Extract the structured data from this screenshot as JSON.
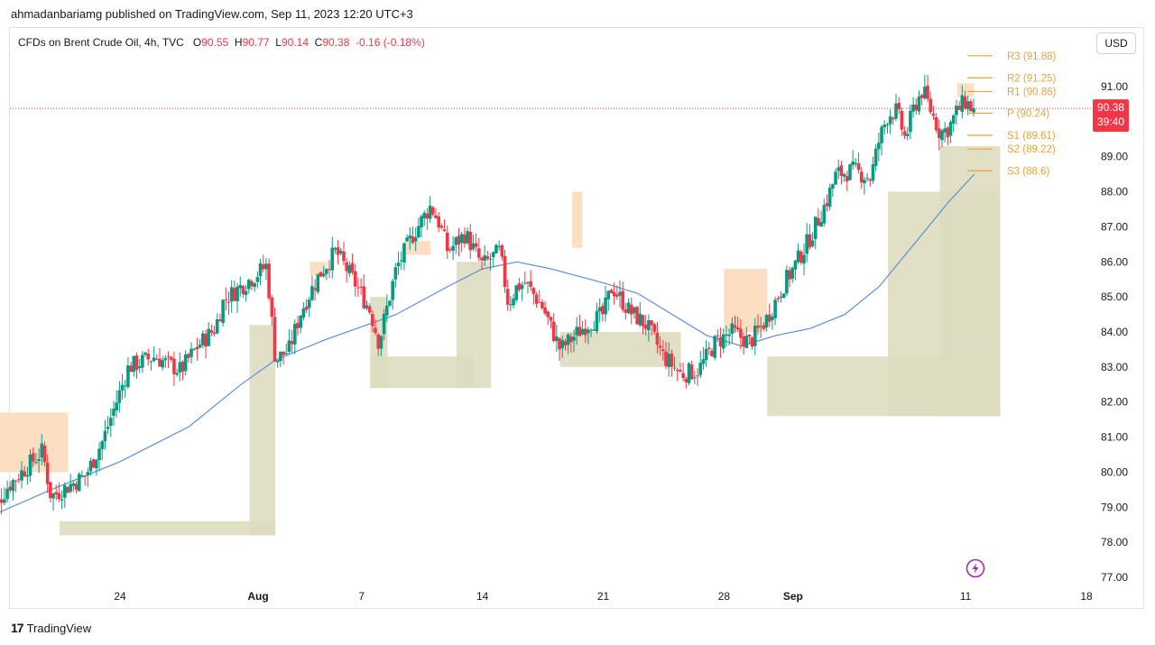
{
  "header": {
    "publisher_line": "ahmadanbariamg published on TradingView.com, Sep 11, 2023 12:20 UTC+3"
  },
  "legend": {
    "symbol": "CFDs on Brent Crude Oil, 4h, TVC",
    "open_label": "O",
    "open_value": "90.55",
    "high_label": "H",
    "high_value": "90.77",
    "low_label": "L",
    "low_value": "90.14",
    "close_label": "C",
    "close_value": "90.38",
    "change": "-0.16 (-0.18%)"
  },
  "currency_button": "USD",
  "price_badge": {
    "price": "90.38",
    "countdown": "39:40",
    "color": "#f23645"
  },
  "footer": {
    "logo": "17",
    "brand": "TradingView"
  },
  "colors": {
    "up": "#089981",
    "down": "#f23645",
    "ma": "#5b8fd6",
    "pivot": "#e8a33d",
    "zone_supply": "#fbd9b8",
    "zone_demand": "#dedcbf",
    "last_price_line": "#f23645"
  },
  "chart_data": {
    "type": "candlestick",
    "timeframe": "4h",
    "y_range": [
      76.8,
      92.3
    ],
    "y_ticks": [
      "77.00",
      "78.00",
      "79.00",
      "80.00",
      "81.00",
      "82.00",
      "83.00",
      "84.00",
      "85.00",
      "86.00",
      "87.00",
      "88.00",
      "89.00",
      "90.00",
      "91.00"
    ],
    "x_ticks": [
      {
        "label": "24",
        "day": 24,
        "bold": false
      },
      {
        "label": "Aug",
        "day": 32,
        "bold": true
      },
      {
        "label": "7",
        "day": 38,
        "bold": false
      },
      {
        "label": "14",
        "day": 45,
        "bold": false
      },
      {
        "label": "21",
        "day": 52,
        "bold": false
      },
      {
        "label": "28",
        "day": 59,
        "bold": false
      },
      {
        "label": "Sep",
        "day": 63,
        "bold": true
      },
      {
        "label": "11",
        "day": 73,
        "bold": false
      },
      {
        "label": "18",
        "day": 80,
        "bold": false
      }
    ],
    "x_domain_days": [
      16.2,
      80.2
    ],
    "last_price": 90.38,
    "pivots": [
      {
        "label": "R3 (91.88)",
        "value": 91.88
      },
      {
        "label": "R2 (91.25)",
        "value": 91.25
      },
      {
        "label": "R1 (90.86)",
        "value": 90.86
      },
      {
        "label": "P (90.24)",
        "value": 90.24
      },
      {
        "label": "S1 (89.61)",
        "value": 89.61
      },
      {
        "label": "S2 (89.22)",
        "value": 89.22
      },
      {
        "label": "S3 (88.6)",
        "value": 88.6
      }
    ],
    "close_waypoints": [
      [
        16.3,
        78.7
      ],
      [
        17.0,
        79.2
      ],
      [
        17.5,
        79.6
      ],
      [
        18.5,
        80.1
      ],
      [
        19.5,
        80.6
      ],
      [
        20.0,
        79.3
      ],
      [
        21.0,
        79.6
      ],
      [
        22.0,
        79.9
      ],
      [
        23.0,
        80.9
      ],
      [
        24.0,
        82.3
      ],
      [
        24.5,
        83.0
      ],
      [
        26.0,
        83.3
      ],
      [
        27.5,
        82.9
      ],
      [
        28.5,
        83.6
      ],
      [
        29.5,
        84.1
      ],
      [
        30.0,
        84.9
      ],
      [
        31.0,
        85.3
      ],
      [
        31.8,
        85.6
      ],
      [
        32.5,
        85.9
      ],
      [
        33.0,
        83.2
      ],
      [
        33.8,
        83.5
      ],
      [
        34.5,
        84.6
      ],
      [
        35.5,
        85.6
      ],
      [
        36.5,
        86.3
      ],
      [
        37.5,
        85.5
      ],
      [
        38.5,
        84.6
      ],
      [
        39.0,
        83.7
      ],
      [
        40.0,
        85.8
      ],
      [
        41.0,
        86.8
      ],
      [
        42.0,
        87.6
      ],
      [
        42.5,
        87.1
      ],
      [
        43.0,
        86.3
      ],
      [
        44.0,
        86.8
      ],
      [
        45.0,
        85.9
      ],
      [
        46.0,
        86.3
      ],
      [
        46.5,
        84.8
      ],
      [
        47.0,
        85.3
      ],
      [
        47.5,
        85.4
      ],
      [
        48.5,
        84.7
      ],
      [
        49.5,
        83.5
      ],
      [
        51.0,
        84.2
      ],
      [
        52.0,
        84.5
      ],
      [
        52.5,
        85.3
      ],
      [
        53.5,
        84.6
      ],
      [
        54.5,
        84.2
      ],
      [
        55.5,
        83.3
      ],
      [
        56.5,
        82.8
      ],
      [
        57.5,
        82.9
      ],
      [
        58.5,
        83.7
      ],
      [
        59.5,
        84.0
      ],
      [
        60.5,
        83.7
      ],
      [
        61.5,
        84.4
      ],
      [
        62.5,
        85.4
      ],
      [
        63.0,
        85.8
      ],
      [
        64.0,
        86.7
      ],
      [
        65.0,
        87.8
      ],
      [
        65.5,
        88.5
      ],
      [
        66.5,
        88.6
      ],
      [
        67.0,
        88.5
      ],
      [
        67.5,
        88.4
      ],
      [
        68.0,
        89.5
      ],
      [
        68.5,
        90.2
      ],
      [
        69.0,
        90.3
      ],
      [
        69.5,
        89.5
      ],
      [
        70.0,
        90.4
      ],
      [
        70.5,
        90.9
      ],
      [
        71.0,
        90.3
      ],
      [
        71.5,
        89.7
      ],
      [
        72.0,
        89.8
      ],
      [
        72.5,
        90.3
      ],
      [
        73.0,
        90.6
      ],
      [
        73.3,
        90.4
      ],
      [
        73.5,
        90.38
      ]
    ],
    "ma_points": [
      [
        16.3,
        78.7
      ],
      [
        20,
        79.5
      ],
      [
        24,
        80.3
      ],
      [
        28,
        81.3
      ],
      [
        31,
        82.5
      ],
      [
        33,
        83.2
      ],
      [
        36,
        83.8
      ],
      [
        40,
        84.5
      ],
      [
        43,
        85.3
      ],
      [
        45,
        85.8
      ],
      [
        47,
        86.0
      ],
      [
        49,
        85.8
      ],
      [
        52,
        85.4
      ],
      [
        54,
        85.1
      ],
      [
        56,
        84.5
      ],
      [
        58,
        83.9
      ],
      [
        60,
        83.6
      ],
      [
        62,
        83.9
      ],
      [
        64,
        84.1
      ],
      [
        66,
        84.5
      ],
      [
        68,
        85.3
      ],
      [
        70,
        86.5
      ],
      [
        72,
        87.7
      ],
      [
        73.5,
        88.5
      ]
    ],
    "zones": [
      {
        "kind": "supply",
        "x0": 16.6,
        "x1": 21.0,
        "top": 81.7,
        "bottom": 80.0
      },
      {
        "kind": "supply",
        "x0": 35.0,
        "x1": 36.0,
        "top": 86.0,
        "bottom": 85.6
      },
      {
        "kind": "supply",
        "x0": 40.5,
        "x1": 42.0,
        "top": 86.6,
        "bottom": 86.2
      },
      {
        "kind": "supply",
        "x0": 50.2,
        "x1": 50.8,
        "top": 88.0,
        "bottom": 86.4
      },
      {
        "kind": "supply",
        "x0": 59.0,
        "x1": 61.5,
        "top": 85.8,
        "bottom": 84.0
      },
      {
        "kind": "supply",
        "x0": 72.5,
        "x1": 73.5,
        "top": 91.1,
        "bottom": 90.7
      },
      {
        "kind": "demand",
        "x0": 20.5,
        "x1": 33.0,
        "top": 78.6,
        "bottom": 78.2
      },
      {
        "kind": "demand",
        "x0": 31.5,
        "x1": 33.0,
        "top": 84.2,
        "bottom": 78.2
      },
      {
        "kind": "demand",
        "x0": 38.5,
        "x1": 44.5,
        "top": 83.3,
        "bottom": 82.4
      },
      {
        "kind": "demand",
        "x0": 38.5,
        "x1": 39.5,
        "top": 85.0,
        "bottom": 82.4
      },
      {
        "kind": "demand",
        "x0": 43.5,
        "x1": 45.5,
        "top": 86.0,
        "bottom": 82.4
      },
      {
        "kind": "demand",
        "x0": 49.5,
        "x1": 56.5,
        "top": 84.0,
        "bottom": 83.0
      },
      {
        "kind": "demand",
        "x0": 61.5,
        "x1": 75.0,
        "top": 83.3,
        "bottom": 81.6
      },
      {
        "kind": "demand",
        "x0": 68.5,
        "x1": 75.0,
        "top": 88.0,
        "bottom": 81.6
      },
      {
        "kind": "demand",
        "x0": 71.5,
        "x1": 75.0,
        "top": 89.3,
        "bottom": 81.6
      }
    ]
  }
}
